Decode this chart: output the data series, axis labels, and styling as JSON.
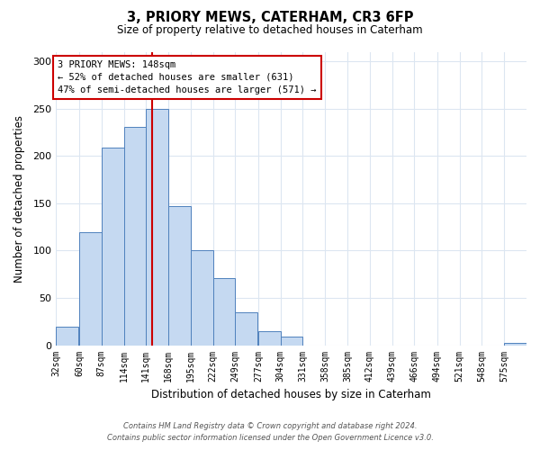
{
  "title": "3, PRIORY MEWS, CATERHAM, CR3 6FP",
  "subtitle": "Size of property relative to detached houses in Caterham",
  "xlabel": "Distribution of detached houses by size in Caterham",
  "ylabel": "Number of detached properties",
  "bar_labels": [
    "32sqm",
    "60sqm",
    "87sqm",
    "114sqm",
    "141sqm",
    "168sqm",
    "195sqm",
    "222sqm",
    "249sqm",
    "277sqm",
    "304sqm",
    "331sqm",
    "358sqm",
    "385sqm",
    "412sqm",
    "439sqm",
    "466sqm",
    "494sqm",
    "521sqm",
    "548sqm",
    "575sqm"
  ],
  "bar_values": [
    20,
    119,
    209,
    231,
    250,
    147,
    100,
    71,
    35,
    15,
    9,
    0,
    0,
    0,
    0,
    0,
    0,
    0,
    0,
    0,
    2
  ],
  "bar_color": "#c5d9f1",
  "bar_edge_color": "#4f81bd",
  "ylim": [
    0,
    310
  ],
  "yticks": [
    0,
    50,
    100,
    150,
    200,
    250,
    300
  ],
  "vline_color": "#cc0000",
  "vline_x": 148,
  "annotation_title": "3 PRIORY MEWS: 148sqm",
  "annotation_line2": "← 52% of detached houses are smaller (631)",
  "annotation_line3": "47% of semi-detached houses are larger (571) →",
  "annotation_box_color": "#cc0000",
  "footer_line1": "Contains HM Land Registry data © Crown copyright and database right 2024.",
  "footer_line2": "Contains public sector information licensed under the Open Government Licence v3.0.",
  "bg_color": "#ffffff",
  "grid_color": "#dce6f1",
  "bin_width": 27
}
